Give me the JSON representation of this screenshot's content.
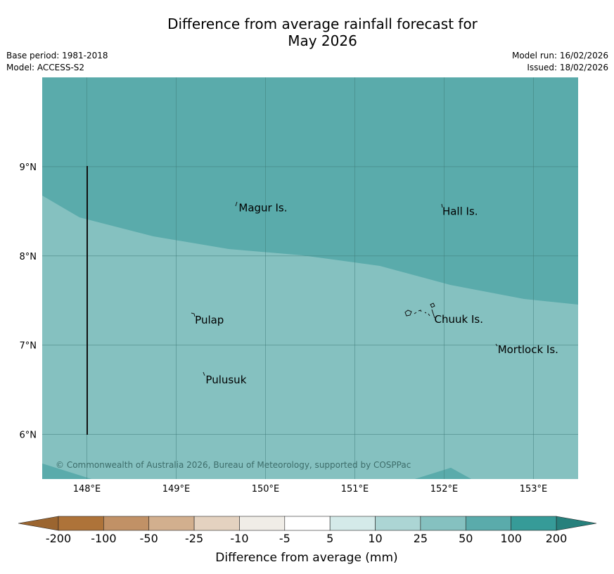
{
  "header": {
    "title_line1": "Difference from average rainfall forecast for",
    "title_line2": "May 2026",
    "base_period": "Base period: 1981-2018",
    "model": "Model: ACCESS-S2",
    "model_run": "Model run: 16/02/2026",
    "issued": "Issued: 18/02/2026"
  },
  "map": {
    "lon_range": [
      147.5,
      153.5
    ],
    "lat_range": [
      5.5,
      10.0
    ],
    "lon_ticks": [
      {
        "value": 148,
        "label": "148°E"
      },
      {
        "value": 149,
        "label": "149°E"
      },
      {
        "value": 150,
        "label": "150°E"
      },
      {
        "value": 151,
        "label": "151°E"
      },
      {
        "value": 152,
        "label": "152°E"
      },
      {
        "value": 153,
        "label": "153°E"
      }
    ],
    "lat_ticks": [
      {
        "value": 9,
        "label": "9°N"
      },
      {
        "value": 8,
        "label": "8°N"
      },
      {
        "value": 7,
        "label": "7°N"
      },
      {
        "value": 6,
        "label": "6°N"
      }
    ],
    "grid": true,
    "colors": {
      "band_50_100": "#5aabab",
      "band_25_50": "#85c1c0",
      "grid_line": "#3f7b78"
    },
    "places": [
      {
        "name": "Magur Is.",
        "lon": 149.7,
        "lat": 8.54
      },
      {
        "name": "Hall Is.",
        "lon": 151.98,
        "lat": 8.5
      },
      {
        "name": "Pulap",
        "lon": 149.21,
        "lat": 7.28
      },
      {
        "name": "Chuuk Is.",
        "lon": 151.89,
        "lat": 7.29
      },
      {
        "name": "Mortlock Is.",
        "lon": 152.6,
        "lat": 6.95
      },
      {
        "name": "Pulusuk",
        "lon": 149.33,
        "lat": 6.61
      }
    ],
    "copyright": "© Commonwealth of Australia 2026, Bureau of Meteorology, supported by COSPPac"
  },
  "colorbar": {
    "title": "Difference from average (mm)",
    "ticks": [
      "-200",
      "-100",
      "-50",
      "-25",
      "-10",
      "-5",
      "5",
      "10",
      "25",
      "50",
      "100",
      "200"
    ],
    "colors": [
      "#ae7339",
      "#c19166",
      "#d2af8e",
      "#e4d2c0",
      "#f0ede7",
      "#ffffff",
      "#d4eae9",
      "#acd5d4",
      "#85c1c0",
      "#5aabab",
      "#369b98"
    ],
    "under_color": "#9b6530",
    "over_color": "#27807c"
  }
}
